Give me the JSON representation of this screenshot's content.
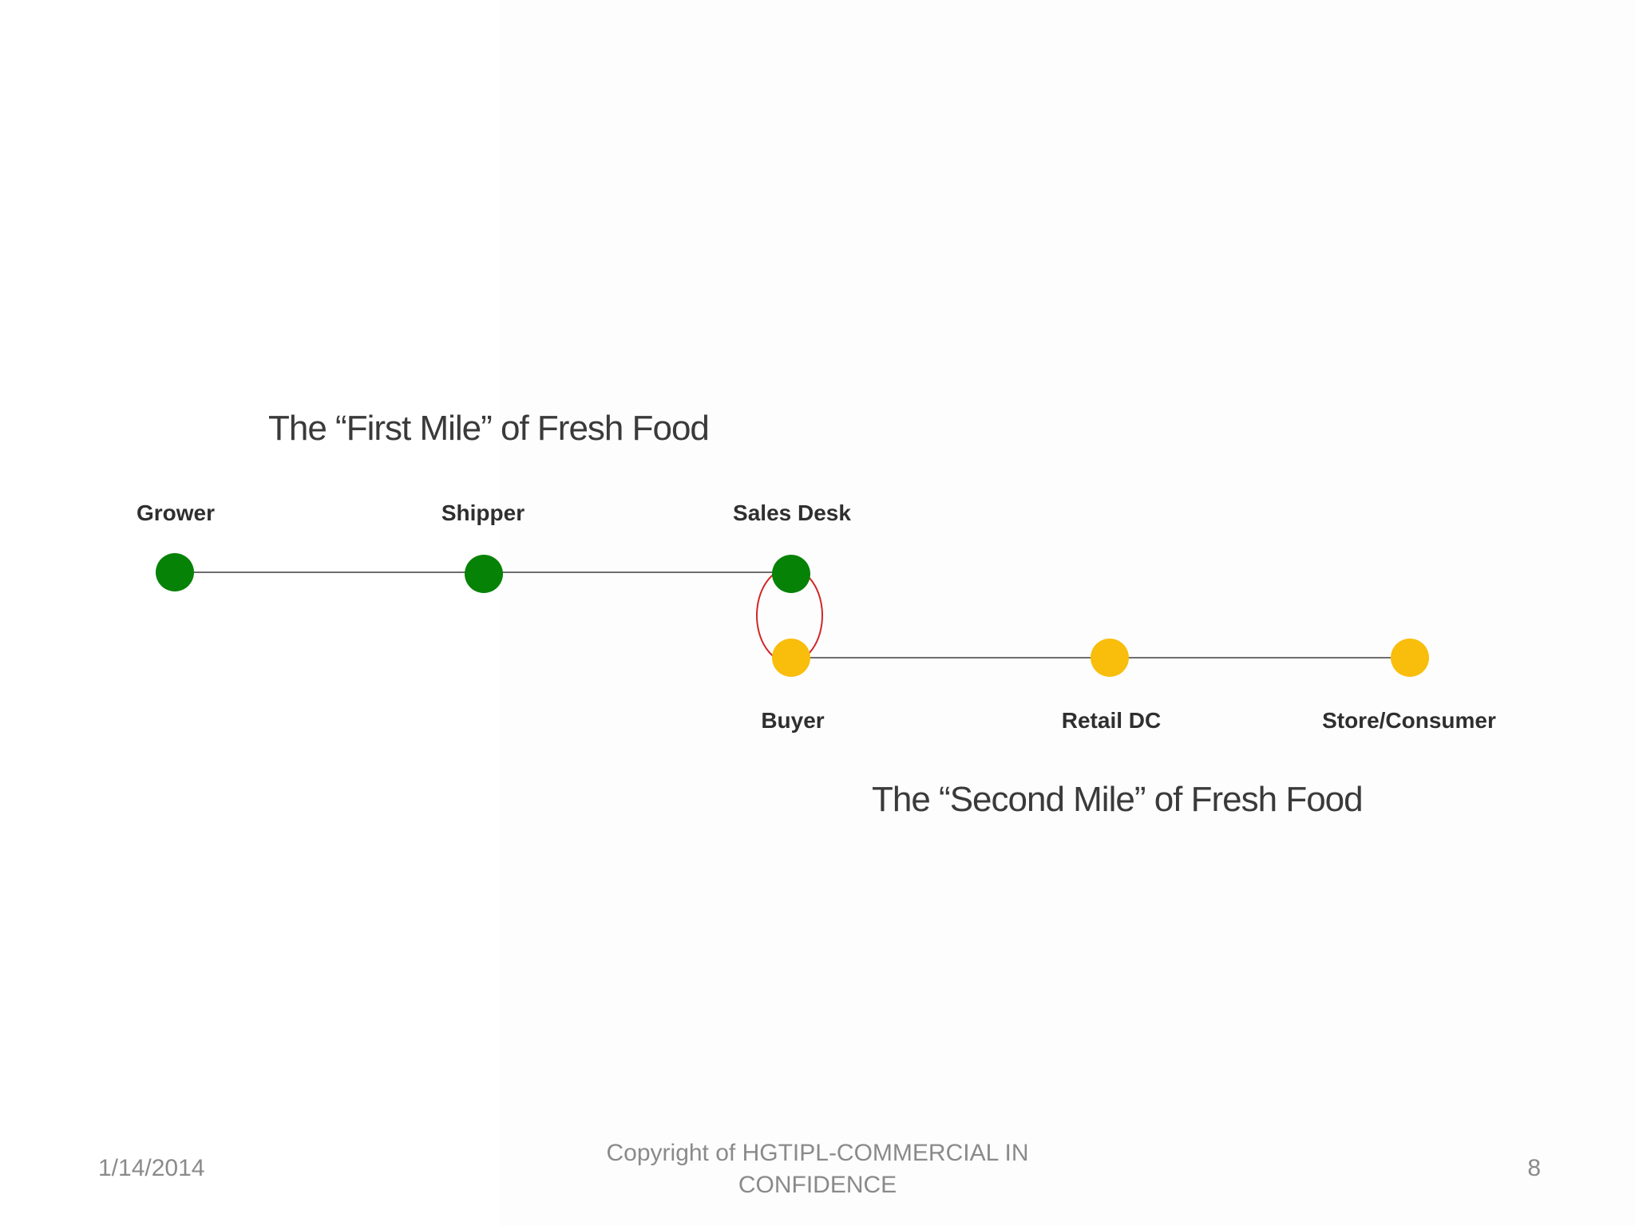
{
  "diagram": {
    "first_mile_title": "The “First Mile” of Fresh Food",
    "second_mile_title": "The “Second Mile” of Fresh Food",
    "first_mile_nodes": [
      {
        "label": "Grower",
        "color": "#068206"
      },
      {
        "label": "Shipper",
        "color": "#068206"
      },
      {
        "label": "Sales Desk",
        "color": "#068206"
      }
    ],
    "second_mile_nodes": [
      {
        "label": "Buyer",
        "color": "#f9bd0b"
      },
      {
        "label": "Retail DC",
        "color": "#f9bd0b"
      },
      {
        "label": "Store/Consumer",
        "color": "#f9bd0b"
      }
    ],
    "connector_color": "#6e6e6e",
    "handoff_highlight_color": "#d22626"
  },
  "footer": {
    "date": "1/14/2014",
    "copyright_line1": "Copyright of HGTIPL-COMMERCIAL IN",
    "copyright_line2": "CONFIDENCE",
    "page_number": "8"
  }
}
